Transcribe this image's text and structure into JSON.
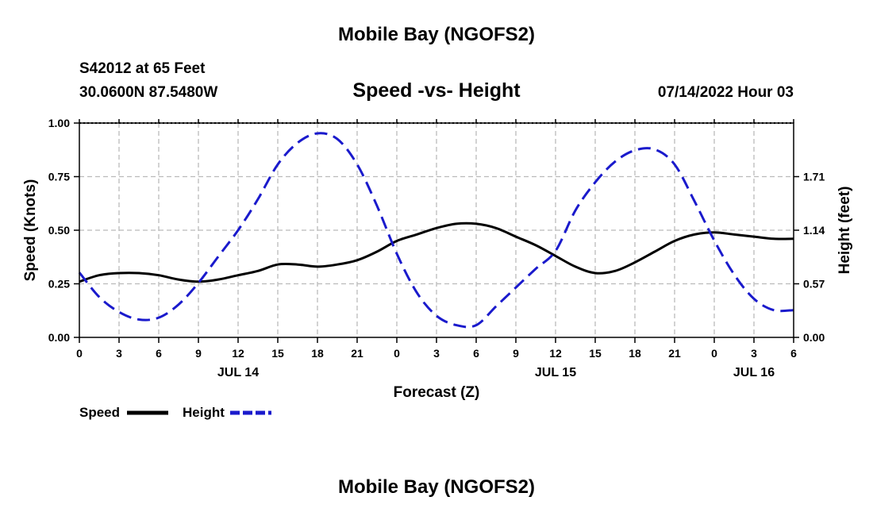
{
  "header": {
    "title": "Mobile Bay (NGOFS2)",
    "station": "S42012 at 65 Feet",
    "coordinates": "30.0600N  87.5480W",
    "chart_title": "Speed -vs- Height",
    "datetime": "07/14/2022 Hour 03",
    "footer_title": "Mobile Bay (NGOFS2)"
  },
  "colors": {
    "speed": "#000000",
    "height": "#1a1acc",
    "grid": "#bbbbbb"
  },
  "chart_data": {
    "type": "line",
    "title": "Speed -vs- Height",
    "xlabel": "Forecast (Z)",
    "ylabel": "Speed (Knots)",
    "y2label": "Height (feet)",
    "x_unit": "hours since 2022-07-14 00Z",
    "xlim": [
      0,
      54
    ],
    "ylim": [
      0,
      1
    ],
    "y2lim": [
      0,
      2.28
    ],
    "x_ticks": [
      0,
      3,
      6,
      9,
      12,
      15,
      18,
      21,
      24,
      27,
      30,
      33,
      36,
      39,
      42,
      45,
      48,
      51,
      54
    ],
    "x_tick_labels": [
      "0",
      "3",
      "6",
      "9",
      "12",
      "15",
      "18",
      "21",
      "0",
      "3",
      "6",
      "9",
      "12",
      "15",
      "18",
      "21",
      "0",
      "3",
      "6"
    ],
    "date_labels": [
      {
        "x": 12,
        "label": "JUL 14"
      },
      {
        "x": 36,
        "label": "JUL 15"
      },
      {
        "x": 51,
        "label": "JUL 16"
      }
    ],
    "y_ticks": [
      0.0,
      0.25,
      0.5,
      0.75,
      1.0
    ],
    "y_tick_labels": [
      "0.00",
      "0.25",
      "0.50",
      "0.75",
      "1.00"
    ],
    "y2_ticks": [
      0.0,
      0.57,
      1.14,
      1.71
    ],
    "y2_tick_labels": [
      "0.00",
      "0.57",
      "1.14",
      "1.71"
    ],
    "grid": true,
    "legend": "bottom-left",
    "series": [
      {
        "name": "Speed",
        "axis": "left",
        "style": "solid",
        "x": [
          0,
          1.5,
          3,
          4.5,
          6,
          7.5,
          9,
          10.5,
          12,
          13.5,
          15,
          16.5,
          18,
          19.5,
          21,
          22.5,
          24,
          25.5,
          27,
          28.5,
          30,
          31.5,
          33,
          34.5,
          36,
          37.5,
          39,
          40.5,
          42,
          43.5,
          45,
          46.5,
          48,
          49.5,
          51,
          52.5,
          54
        ],
        "values": [
          0.26,
          0.29,
          0.3,
          0.3,
          0.29,
          0.27,
          0.26,
          0.27,
          0.29,
          0.31,
          0.34,
          0.34,
          0.33,
          0.34,
          0.36,
          0.4,
          0.45,
          0.48,
          0.51,
          0.53,
          0.53,
          0.51,
          0.47,
          0.43,
          0.38,
          0.33,
          0.3,
          0.31,
          0.35,
          0.4,
          0.45,
          0.48,
          0.49,
          0.48,
          0.47,
          0.46,
          0.46
        ]
      },
      {
        "name": "Height",
        "axis": "right",
        "style": "dashed",
        "x": [
          0,
          1.5,
          3,
          4.5,
          6,
          7.5,
          9,
          10.5,
          12,
          13.5,
          15,
          16.5,
          18,
          19.5,
          21,
          22.5,
          24,
          25.5,
          27,
          28.5,
          30,
          31.5,
          33,
          34.5,
          36,
          37.5,
          39,
          40.5,
          42,
          43.5,
          45,
          46.5,
          48,
          49.5,
          51,
          52.5,
          54
        ],
        "values": [
          0.69,
          0.43,
          0.27,
          0.19,
          0.21,
          0.35,
          0.58,
          0.86,
          1.14,
          1.47,
          1.84,
          2.07,
          2.17,
          2.11,
          1.84,
          1.4,
          0.89,
          0.48,
          0.23,
          0.13,
          0.13,
          0.33,
          0.53,
          0.73,
          0.92,
          1.35,
          1.65,
          1.87,
          1.99,
          2.0,
          1.84,
          1.45,
          1.03,
          0.67,
          0.41,
          0.29,
          0.29
        ]
      }
    ]
  }
}
